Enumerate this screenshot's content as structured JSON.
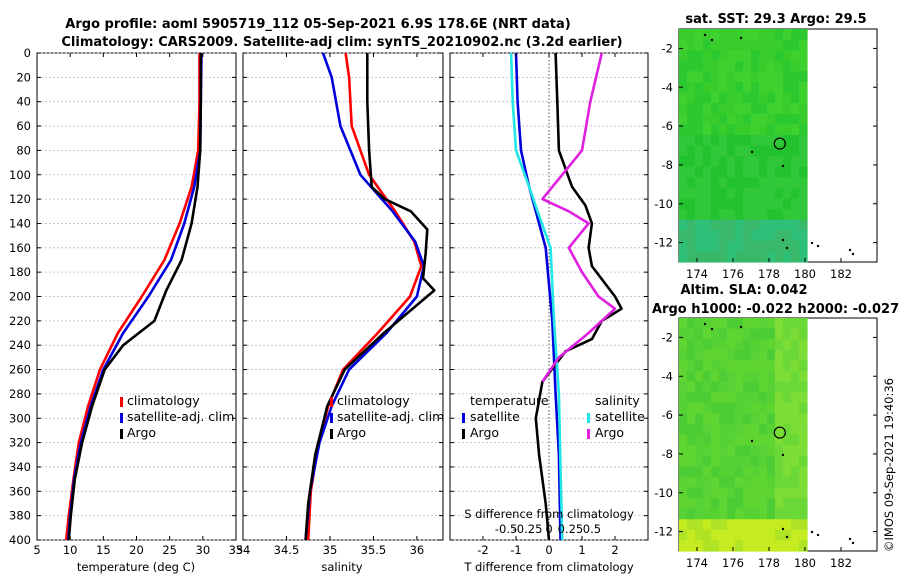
{
  "title_line1": "Argo profile: aoml 5905719_112 05-Sep-2021 6.9S 178.6E (NRT data)",
  "title_line2": "Climatology: CARS2009. Satellite-adj clim: synTS_20210902.nc (3.2d earlier)",
  "timestamp": "©IMOS 09-Sep-2021 19:40:36",
  "colors": {
    "climatology": "#ff0000",
    "satellite": "#0000dd",
    "argo": "#000000",
    "t_sat": "#22e5e5",
    "s_argo": "#e020e0",
    "sst_green": "#22c32e",
    "sla_yellow": "#b8e820"
  },
  "chart_data": [
    {
      "type": "line",
      "name": "temperature-profile",
      "xlabel": "temperature (deg C)",
      "ylabel": "",
      "xlim": [
        5,
        35
      ],
      "ylim": [
        400,
        0
      ],
      "xticks": [
        "5",
        "10",
        "15",
        "20",
        "25",
        "30",
        "35"
      ],
      "yticks": [
        "0",
        "20",
        "40",
        "60",
        "80",
        "100",
        "120",
        "140",
        "160",
        "180",
        "200",
        "220",
        "240",
        "260",
        "280",
        "300",
        "320",
        "340",
        "360",
        "380",
        "400"
      ],
      "legend": [
        "climatology",
        "satellite-adj. clim",
        "Argo"
      ],
      "series": [
        {
          "name": "climatology",
          "points": [
            [
              29.5,
              0
            ],
            [
              29.5,
              40
            ],
            [
              29.3,
              80
            ],
            [
              28.3,
              110
            ],
            [
              26.5,
              140
            ],
            [
              24.2,
              170
            ],
            [
              20.8,
              200
            ],
            [
              17.2,
              230
            ],
            [
              14.5,
              260
            ],
            [
              12.7,
              290
            ],
            [
              11.3,
              320
            ],
            [
              10.5,
              350
            ],
            [
              9.8,
              380
            ],
            [
              9.4,
              400
            ]
          ]
        },
        {
          "name": "satellite-adj. clim",
          "points": [
            [
              29.8,
              0
            ],
            [
              29.7,
              40
            ],
            [
              29.6,
              80
            ],
            [
              28.7,
              110
            ],
            [
              27.2,
              140
            ],
            [
              25.2,
              170
            ],
            [
              21.8,
              200
            ],
            [
              18.0,
              230
            ],
            [
              15.0,
              260
            ],
            [
              13.1,
              290
            ],
            [
              11.6,
              320
            ],
            [
              10.6,
              350
            ],
            [
              10.0,
              380
            ],
            [
              9.7,
              400
            ]
          ]
        },
        {
          "name": "Argo",
          "points": [
            [
              29.7,
              0
            ],
            [
              29.7,
              40
            ],
            [
              29.6,
              80
            ],
            [
              29.2,
              110
            ],
            [
              28.3,
              140
            ],
            [
              26.8,
              170
            ],
            [
              24.5,
              195
            ],
            [
              22.7,
              220
            ],
            [
              18.0,
              240
            ],
            [
              15.2,
              260
            ],
            [
              13.3,
              290
            ],
            [
              11.8,
              320
            ],
            [
              10.7,
              350
            ],
            [
              10.1,
              380
            ],
            [
              9.8,
              400
            ]
          ]
        }
      ]
    },
    {
      "type": "line",
      "name": "salinity-profile",
      "xlabel": "salinity",
      "xlim": [
        34,
        36.3
      ],
      "ylim": [
        400,
        0
      ],
      "xticks": [
        "34",
        "34.5",
        "35",
        "35.5",
        "36"
      ],
      "legend": [
        "climatology",
        "satellite-adj. clim",
        "Argo"
      ],
      "series": [
        {
          "name": "climatology",
          "points": [
            [
              35.18,
              0
            ],
            [
              35.22,
              20
            ],
            [
              35.25,
              60
            ],
            [
              35.45,
              100
            ],
            [
              35.75,
              130
            ],
            [
              35.97,
              155
            ],
            [
              36.05,
              175
            ],
            [
              35.92,
              200
            ],
            [
              35.55,
              230
            ],
            [
              35.15,
              260
            ],
            [
              34.98,
              290
            ],
            [
              34.87,
              320
            ],
            [
              34.78,
              360
            ],
            [
              34.75,
              400
            ]
          ]
        },
        {
          "name": "satellite-adj. clim",
          "points": [
            [
              34.92,
              0
            ],
            [
              35.02,
              20
            ],
            [
              35.12,
              60
            ],
            [
              35.35,
              100
            ],
            [
              35.72,
              130
            ],
            [
              35.98,
              155
            ],
            [
              36.08,
              175
            ],
            [
              36.0,
              200
            ],
            [
              35.65,
              230
            ],
            [
              35.22,
              260
            ],
            [
              35.02,
              290
            ],
            [
              34.88,
              320
            ],
            [
              34.77,
              360
            ],
            [
              34.72,
              400
            ]
          ]
        },
        {
          "name": "Argo",
          "points": [
            [
              35.43,
              0
            ],
            [
              35.43,
              40
            ],
            [
              35.45,
              80
            ],
            [
              35.48,
              110
            ],
            [
              35.63,
              120
            ],
            [
              35.93,
              130
            ],
            [
              36.12,
              145
            ],
            [
              36.1,
              165
            ],
            [
              36.07,
              185
            ],
            [
              36.2,
              195
            ],
            [
              35.62,
              230
            ],
            [
              35.17,
              260
            ],
            [
              34.97,
              290
            ],
            [
              34.83,
              330
            ],
            [
              34.75,
              370
            ],
            [
              34.72,
              400
            ]
          ]
        }
      ]
    },
    {
      "type": "line",
      "name": "difference-profile",
      "xlabel": "T difference from climatology",
      "xlabel_top": "S difference from climatology",
      "xlim": [
        -3,
        3
      ],
      "ylim": [
        400,
        0
      ],
      "xticks": [
        "-2",
        "-1",
        "0",
        "1",
        "2"
      ],
      "xticks_s": [
        "-0.5",
        "-0.25",
        "0",
        "0.25",
        "0.5"
      ],
      "legend_left_title": "temperature",
      "legend_right_title": "salinity",
      "legend": [
        "satellite",
        "Argo",
        "satellite",
        "Argo"
      ],
      "series": [
        {
          "name": "temperature satellite",
          "points": [
            [
              -1.0,
              0
            ],
            [
              -0.95,
              40
            ],
            [
              -0.85,
              80
            ],
            [
              -0.6,
              110
            ],
            [
              -0.4,
              130
            ],
            [
              -0.1,
              160
            ],
            [
              0.1,
              220
            ],
            [
              0.2,
              280
            ],
            [
              0.3,
              330
            ],
            [
              0.35,
              400
            ]
          ]
        },
        {
          "name": "temperature Argo",
          "points": [
            [
              0.2,
              0
            ],
            [
              0.25,
              40
            ],
            [
              0.3,
              80
            ],
            [
              0.7,
              110
            ],
            [
              1.1,
              125
            ],
            [
              1.3,
              140
            ],
            [
              1.2,
              160
            ],
            [
              1.3,
              175
            ],
            [
              2.0,
              200
            ],
            [
              2.2,
              210
            ],
            [
              1.6,
              220
            ],
            [
              1.3,
              235
            ],
            [
              0.5,
              245
            ],
            [
              -0.2,
              270
            ],
            [
              -0.4,
              300
            ],
            [
              -0.3,
              330
            ],
            [
              -0.1,
              370
            ],
            [
              0.0,
              400
            ]
          ]
        },
        {
          "name": "salinity satellite",
          "points": [
            [
              -1.15,
              0
            ],
            [
              -1.1,
              40
            ],
            [
              -1.0,
              80
            ],
            [
              -0.6,
              110
            ],
            [
              -0.35,
              130
            ],
            [
              0.05,
              160
            ],
            [
              0.15,
              220
            ],
            [
              0.3,
              280
            ],
            [
              0.35,
              340
            ],
            [
              0.4,
              400
            ]
          ]
        },
        {
          "name": "salinity Argo",
          "points": [
            [
              1.6,
              0
            ],
            [
              1.25,
              40
            ],
            [
              1.0,
              80
            ],
            [
              0.4,
              100
            ],
            [
              -0.2,
              120
            ],
            [
              0.6,
              130
            ],
            [
              1.2,
              140
            ],
            [
              0.6,
              160
            ],
            [
              1.0,
              180
            ],
            [
              1.5,
              200
            ],
            [
              2.0,
              210
            ],
            [
              1.2,
              230
            ],
            [
              0.3,
              250
            ],
            [
              -0.2,
              270
            ]
          ]
        }
      ]
    },
    {
      "type": "heatmap",
      "name": "sst-map",
      "title": "sat. SST: 29.3 Argo: 29.5",
      "xticks": [
        "174",
        "176",
        "178",
        "180",
        "182"
      ],
      "yticks": [
        "-2",
        "-4",
        "-6",
        "-8",
        "-10",
        "-12"
      ],
      "argo_position": [
        178.6,
        -6.9
      ]
    },
    {
      "type": "heatmap",
      "name": "sla-map",
      "title_line1": "Altim. SLA: 0.042",
      "title_line2": "Argo h1000: -0.022 h2000: -0.027",
      "xticks": [
        "174",
        "176",
        "178",
        "180",
        "182"
      ],
      "yticks": [
        "-2",
        "-4",
        "-6",
        "-8",
        "-10",
        "-12"
      ],
      "argo_position": [
        178.6,
        -6.9
      ]
    }
  ]
}
